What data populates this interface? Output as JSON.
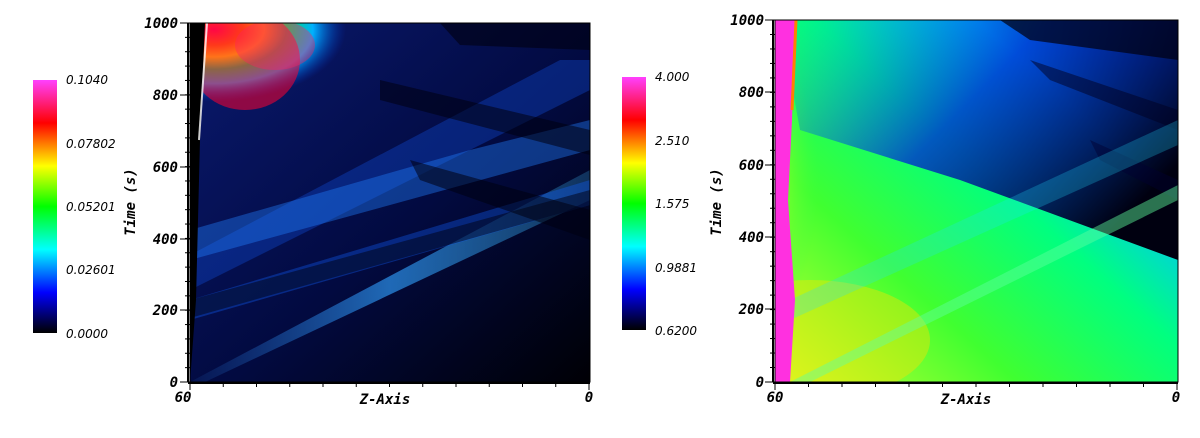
{
  "chart_data": [
    {
      "type": "heatmap",
      "title": "",
      "xlabel": "Z-Axis",
      "ylabel": "Time (s)",
      "x_tick_labels": [
        "60",
        "0"
      ],
      "y_tick_labels": [
        "0",
        "200",
        "400",
        "600",
        "800",
        "1000"
      ],
      "xlim": [
        60,
        0
      ],
      "ylim": [
        0,
        1000
      ],
      "colorbar": {
        "tick_labels": [
          "0.1040",
          "0.07802",
          "0.05201",
          "0.02601",
          "0.0000"
        ],
        "range": [
          0.0,
          0.104
        ],
        "colors": [
          "#ff40ff",
          "#ff0000",
          "#ffff00",
          "#00ff00",
          "#00ffff",
          "#0000ff",
          "#000000"
        ]
      }
    },
    {
      "type": "heatmap",
      "title": "",
      "xlabel": "Z-Axis",
      "ylabel": "Time (s)",
      "x_tick_labels": [
        "60",
        "0"
      ],
      "y_tick_labels": [
        "0",
        "200",
        "400",
        "600",
        "800",
        "1000"
      ],
      "xlim": [
        60,
        0
      ],
      "ylim": [
        0,
        1000
      ],
      "colorbar": {
        "tick_labels": [
          "4.000",
          "2.510",
          "1.575",
          "0.9881",
          "0.6200"
        ],
        "range": [
          0.62,
          4.0
        ],
        "colors": [
          "#ff40ff",
          "#ff0000",
          "#ffff00",
          "#00ff00",
          "#00ffff",
          "#0000ff",
          "#000000"
        ]
      }
    }
  ]
}
